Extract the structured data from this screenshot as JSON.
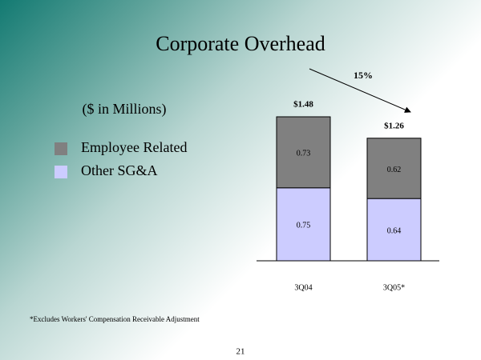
{
  "chart_data": {
    "type": "stacked_bar",
    "title": "Corporate Overhead",
    "subtitle": "($ in Millions)",
    "categories": [
      "3Q04",
      "3Q05*"
    ],
    "series": [
      {
        "name": "Other SG&A",
        "color": "#ccccff",
        "values": [
          0.75,
          0.64
        ]
      },
      {
        "name": "Employee Related",
        "color": "#808080",
        "values": [
          0.73,
          0.62
        ]
      }
    ],
    "totals": [
      1.48,
      1.26
    ],
    "total_labels": [
      "$1.48",
      "$1.26"
    ],
    "annotation": "15%",
    "footnote": "*Excludes Workers' Compensation Receivable Adjustment",
    "page_number": "21"
  }
}
